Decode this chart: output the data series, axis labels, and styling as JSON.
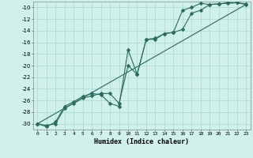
{
  "xlabel": "Humidex (Indice chaleur)",
  "xlim": [
    -0.5,
    23.5
  ],
  "ylim": [
    -31,
    -9
  ],
  "xticks": [
    0,
    1,
    2,
    3,
    4,
    5,
    6,
    7,
    8,
    9,
    10,
    11,
    12,
    13,
    14,
    15,
    16,
    17,
    18,
    19,
    20,
    21,
    22,
    23
  ],
  "yticks": [
    -30,
    -28,
    -26,
    -24,
    -22,
    -20,
    -18,
    -16,
    -14,
    -12,
    -10
  ],
  "bg_color": "#cff0eb",
  "grid_color": "#aad8d0",
  "line_color": "#2a6b5e",
  "line1_x": [
    0,
    1,
    2,
    3,
    4,
    5,
    6,
    7,
    8,
    9,
    10,
    11,
    12,
    13,
    14,
    15,
    16,
    17,
    18,
    19,
    20,
    21,
    22,
    23
  ],
  "line1_y": [
    -30.0,
    -30.5,
    -29.7,
    -27.0,
    -26.2,
    -25.3,
    -24.8,
    -25.0,
    -26.5,
    -27.0,
    -17.3,
    -21.5,
    -15.5,
    -15.3,
    -14.5,
    -14.3,
    -10.5,
    -10.0,
    -9.3,
    -9.5,
    -9.4,
    -9.2,
    -9.2,
    -9.5
  ],
  "line2_x": [
    0,
    1,
    2,
    3,
    4,
    5,
    6,
    7,
    8,
    9,
    10,
    11,
    12,
    13,
    14,
    15,
    16,
    17,
    18,
    19,
    20,
    21,
    22,
    23
  ],
  "line2_y": [
    -30.0,
    -30.3,
    -30.0,
    -27.3,
    -26.5,
    -25.6,
    -25.2,
    -24.8,
    -24.8,
    -26.5,
    -20.0,
    -21.5,
    -15.5,
    -15.5,
    -14.5,
    -14.3,
    -13.8,
    -11.0,
    -10.5,
    -9.5,
    -9.4,
    -9.3,
    -9.2,
    -9.4
  ],
  "line3_x": [
    0,
    23
  ],
  "line3_y": [
    -30.0,
    -9.5
  ],
  "marker": "D",
  "markersize": 2.5,
  "linewidth": 0.8
}
